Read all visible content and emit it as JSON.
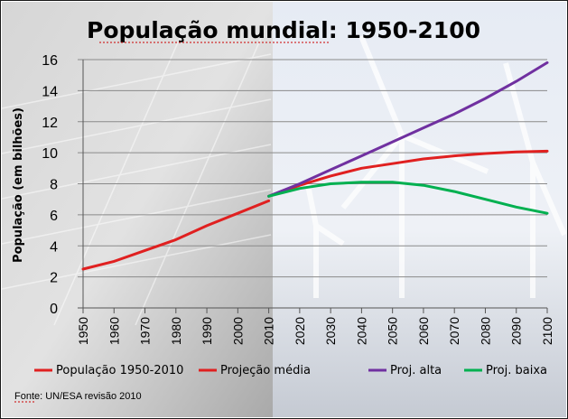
{
  "chart_data": {
    "type": "line",
    "title": "População mundial: 1950-2100",
    "ylabel": "População (em bilhões)",
    "xlabel": "",
    "ylim": [
      0,
      16
    ],
    "yticks": [
      "0",
      "2",
      "4",
      "6",
      "8",
      "10",
      "12",
      "14",
      "16"
    ],
    "xlim": [
      1950,
      2100
    ],
    "xticks": [
      "1950",
      "1960",
      "1970",
      "1980",
      "1990",
      "2000",
      "2010",
      "2020",
      "2030",
      "2040",
      "2050",
      "2060",
      "2070",
      "2080",
      "2090",
      "2100"
    ],
    "grid": true,
    "legend_position": "bottom",
    "series": [
      {
        "name": "População 1950-2010",
        "color": "#e02020",
        "x": [
          1950,
          1960,
          1970,
          1980,
          1990,
          2000,
          2010
        ],
        "y": [
          2.5,
          3.0,
          3.7,
          4.4,
          5.3,
          6.1,
          6.9
        ]
      },
      {
        "name": "Projeção média",
        "color": "#e02020",
        "x": [
          2010,
          2020,
          2030,
          2040,
          2050,
          2060,
          2070,
          2080,
          2090,
          2100
        ],
        "y": [
          7.2,
          7.9,
          8.5,
          9.0,
          9.3,
          9.6,
          9.8,
          9.95,
          10.05,
          10.1
        ]
      },
      {
        "name": "Proj. alta",
        "color": "#7030a0",
        "x": [
          2010,
          2020,
          2030,
          2040,
          2050,
          2060,
          2070,
          2080,
          2090,
          2100
        ],
        "y": [
          7.2,
          8.0,
          8.9,
          9.8,
          10.7,
          11.6,
          12.5,
          13.5,
          14.6,
          15.8
        ]
      },
      {
        "name": "Proj. baixa",
        "color": "#00b050",
        "x": [
          2010,
          2020,
          2030,
          2040,
          2050,
          2060,
          2070,
          2080,
          2090,
          2100
        ],
        "y": [
          7.2,
          7.7,
          8.0,
          8.1,
          8.1,
          7.9,
          7.5,
          7.0,
          6.5,
          6.1
        ]
      }
    ],
    "source": "Fonte: UN/ESA revisão 2010"
  }
}
